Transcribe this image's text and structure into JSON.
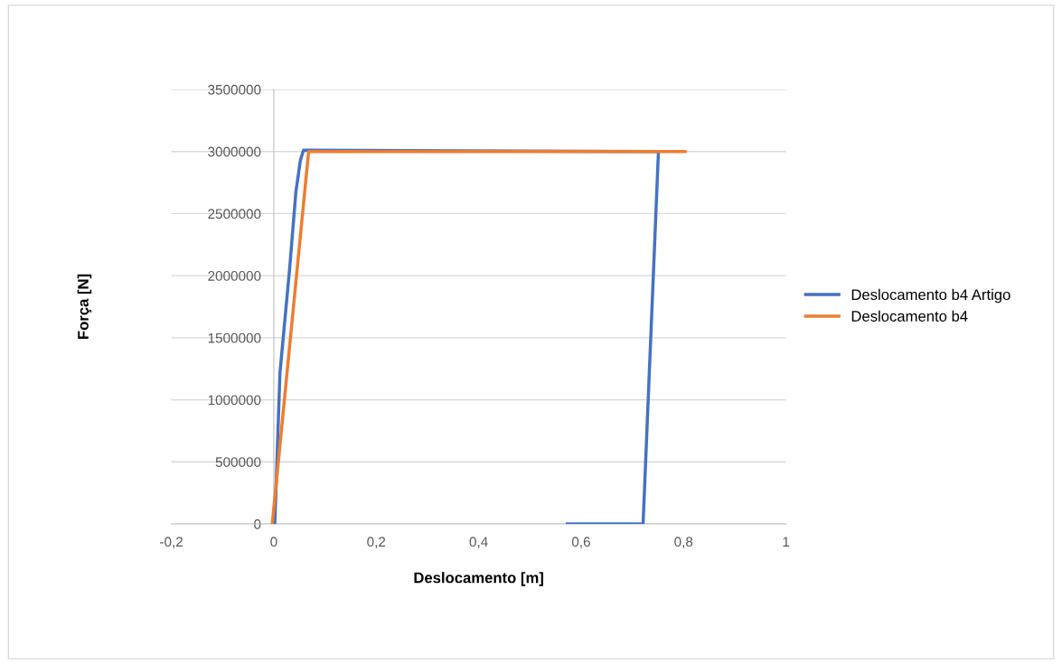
{
  "chart_data": {
    "type": "line",
    "xlabel": "Deslocamento [m]",
    "ylabel": "Força [N]",
    "series": [
      {
        "name": "Deslocamento b4 Artigo",
        "color": "#4472c4",
        "x": [
          0.002,
          0.012,
          0.031,
          0.043,
          0.052,
          0.058,
          0.751,
          0.721,
          0.573
        ],
        "values": [
          0,
          1215000,
          2060000,
          2670000,
          2930000,
          3010000,
          3000000,
          0,
          0
        ]
      },
      {
        "name": "Deslocamento b4",
        "color": "#ed7d31",
        "x": [
          -0.003,
          0.068,
          0.4,
          0.803
        ],
        "values": [
          0,
          3000000,
          3000000,
          3000000
        ]
      }
    ],
    "xlim": [
      -0.2,
      1
    ],
    "xticks": [
      {
        "value": -0.2,
        "label": "-0,2"
      },
      0,
      {
        "value": 0.2,
        "label": "0,2"
      },
      {
        "value": 0.4,
        "label": "0,4"
      },
      {
        "value": 0.6,
        "label": "0,6"
      },
      {
        "value": 0.8,
        "label": "0,8"
      },
      1
    ],
    "ylim": [
      0,
      3500000
    ],
    "yticks": [
      0,
      500000,
      1000000,
      1500000,
      2000000,
      2500000,
      3000000,
      3500000
    ],
    "grid": "y",
    "legend": "right",
    "marker": "none",
    "line_style": "solid"
  }
}
